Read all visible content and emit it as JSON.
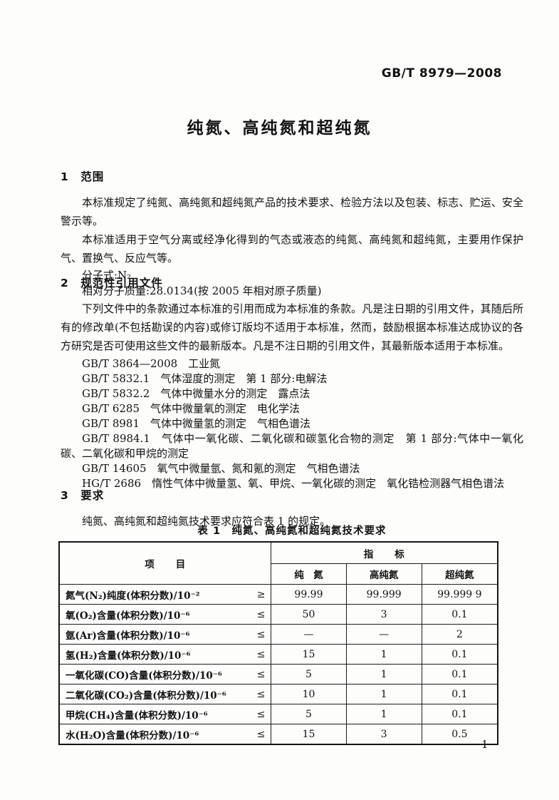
{
  "header": {
    "doc_number": "GB/T 8979—2008"
  },
  "title": "纯氮、高纯氮和超纯氮",
  "section1": {
    "heading": "1　范围",
    "p1": "本标准规定了纯氮、高纯氮和超纯氮产品的技术要求、检验方法以及包装、标志、贮运、安全警示等。",
    "p2": "本标准适用于空气分离或经净化得到的气态或液态的纯氮、高纯氮和超纯氮，主要用作保护气、置换气、反应气等。",
    "formula": "分子式:N₂",
    "molar_mass": "相对分子质量:28.0134(按 2005 年相对原子质量)"
  },
  "section2": {
    "heading": "2　规范性引用文件",
    "p1": "下列文件中的条款通过本标准的引用而成为本标准的条款。凡是注日期的引用文件，其随后所有的修改单(不包括勘误的内容)或修订版均不适用于本标准，然而，鼓励根据本标准达成协议的各方研究是否可使用这些文件的最新版本。凡是不注日期的引用文件，其最新版本适用于本标准。",
    "references": [
      "GB/T 3864—2008　工业氮",
      "GB/T 5832.1　气体湿度的测定　第 1 部分:电解法",
      "GB/T 5832.2　气体中微量水分的测定　露点法",
      "GB/T 6285　气体中微量氧的测定　电化学法",
      "GB/T 8981　气体中微量氢的测定　气相色谱法",
      "GB/T 8984.1　气体中一氧化碳、二氧化碳和碳氢化合物的测定　第 1 部分:气体中一氧化碳、二氧化碳和甲烷的测定",
      "GB/T 14605　氧气中微量氩、氮和氪的测定　气相色谱法",
      "HG/T 2686　惰性气体中微量氢、氧、甲烷、一氧化碳的测定　氧化锆检测器气相色谱法"
    ]
  },
  "section3": {
    "heading": "3　要求",
    "p1": "纯氮、高纯氮和超纯氮技术要求应符合表 1 的规定。"
  },
  "table": {
    "caption": "表 1　纯氮、高纯氮和超纯氮技术要求",
    "item_header": "项　　目",
    "index_header": "指　　标",
    "grade_headers": [
      "纯　氮",
      "高纯氮",
      "超纯氮"
    ],
    "rows": [
      {
        "item": "氮气(N₂)纯度(体积分数)/10⁻²",
        "op": "≥",
        "values": [
          "99.99",
          "99.999",
          "99.999 9"
        ]
      },
      {
        "item": "氧(O₂)含量(体积分数)/10⁻⁶",
        "op": "≤",
        "values": [
          "50",
          "3",
          "0.1"
        ]
      },
      {
        "item": "氩(Ar)含量(体积分数)/10⁻⁶",
        "op": "≤",
        "values": [
          "—",
          "—",
          "2"
        ]
      },
      {
        "item": "氢(H₂)含量(体积分数)/10⁻⁶",
        "op": "≤",
        "values": [
          "15",
          "1",
          "0.1"
        ]
      },
      {
        "item": "一氧化碳(CO)含量(体积分数)/10⁻⁶",
        "op": "≤",
        "values": [
          "5",
          "1",
          "0.1"
        ]
      },
      {
        "item": "二氧化碳(CO₂)含量(体积分数)/10⁻⁶",
        "op": "≤",
        "values": [
          "10",
          "1",
          "0.1"
        ]
      },
      {
        "item": "甲烷(CH₄)含量(体积分数)/10⁻⁶",
        "op": "≤",
        "values": [
          "5",
          "1",
          "0.1"
        ]
      },
      {
        "item": "水(H₂O)含量(体积分数)/10⁻⁶",
        "op": "≤",
        "values": [
          "15",
          "3",
          "0.5"
        ]
      }
    ]
  },
  "footer": {
    "page_number": "1"
  }
}
